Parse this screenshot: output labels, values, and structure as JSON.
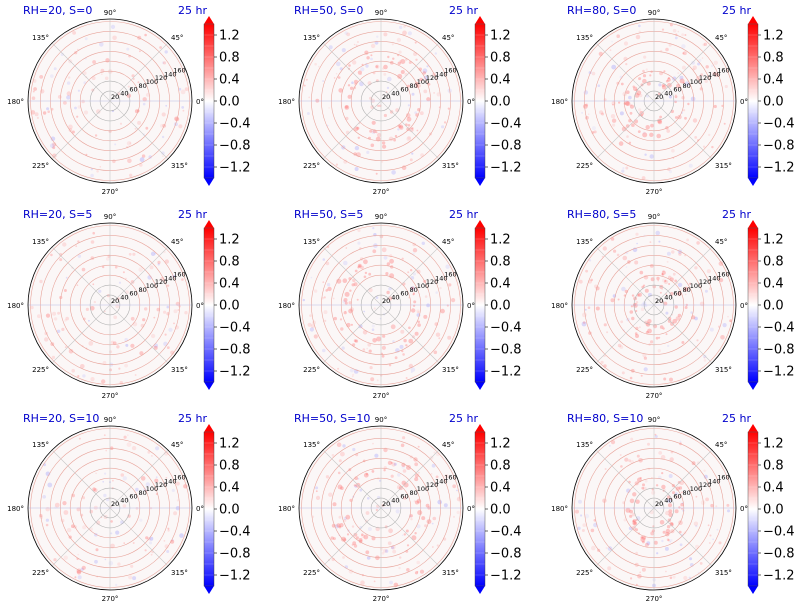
{
  "figure": {
    "time_label": "25 hr",
    "angle_labels": [
      "0°",
      "45°",
      "90°",
      "135°",
      "180°",
      "225°",
      "270°",
      "315°"
    ],
    "radial_labels": [
      "20",
      "40",
      "60",
      "80",
      "100",
      "120",
      "140",
      "160"
    ],
    "colorbar_ticks": [
      "1.2",
      "0.8",
      "0.4",
      "0.0",
      "−0.4",
      "−0.8",
      "−1.2"
    ],
    "colors": {
      "positive": "#ff0000",
      "neutral": "#ffffff",
      "negative": "#0000ff",
      "title": "#0000cc"
    }
  },
  "chart_data": [
    {
      "type": "heatmap",
      "projection": "polar",
      "title": "RH=20, S=0",
      "rh": 20,
      "s": 0,
      "r_ticks": [
        20,
        40,
        60,
        80,
        100,
        120,
        140,
        160
      ],
      "theta_ticks": [
        0,
        45,
        90,
        135,
        180,
        225,
        270,
        315
      ],
      "colorbar": {
        "ticks": [
          -1.2,
          -0.8,
          -0.4,
          0.0,
          0.4,
          0.8,
          1.2
        ],
        "colormap": "bwr",
        "extend": "both",
        "range": [
          -1.4,
          1.4
        ]
      }
    },
    {
      "type": "heatmap",
      "projection": "polar",
      "title": "RH=50, S=0",
      "rh": 50,
      "s": 0,
      "r_ticks": [
        20,
        40,
        60,
        80,
        100,
        120,
        140,
        160
      ],
      "theta_ticks": [
        0,
        45,
        90,
        135,
        180,
        225,
        270,
        315
      ],
      "colorbar": {
        "ticks": [
          -1.2,
          -0.8,
          -0.4,
          0.0,
          0.4,
          0.8,
          1.2
        ],
        "colormap": "bwr",
        "extend": "both",
        "range": [
          -1.4,
          1.4
        ]
      }
    },
    {
      "type": "heatmap",
      "projection": "polar",
      "title": "RH=80, S=0",
      "rh": 80,
      "s": 0,
      "r_ticks": [
        20,
        40,
        60,
        80,
        100,
        120,
        140,
        160
      ],
      "theta_ticks": [
        0,
        45,
        90,
        135,
        180,
        225,
        270,
        315
      ],
      "colorbar": {
        "ticks": [
          -1.2,
          -0.8,
          -0.4,
          0.0,
          0.4,
          0.8,
          1.2
        ],
        "colormap": "bwr",
        "extend": "both",
        "range": [
          -1.4,
          1.4
        ]
      }
    },
    {
      "type": "heatmap",
      "projection": "polar",
      "title": "RH=20, S=5",
      "rh": 20,
      "s": 5,
      "r_ticks": [
        20,
        40,
        60,
        80,
        100,
        120,
        140,
        160
      ],
      "theta_ticks": [
        0,
        45,
        90,
        135,
        180,
        225,
        270,
        315
      ],
      "colorbar": {
        "ticks": [
          -1.2,
          -0.8,
          -0.4,
          0.0,
          0.4,
          0.8,
          1.2
        ],
        "colormap": "bwr",
        "extend": "both",
        "range": [
          -1.4,
          1.4
        ]
      }
    },
    {
      "type": "heatmap",
      "projection": "polar",
      "title": "RH=50, S=5",
      "rh": 50,
      "s": 5,
      "r_ticks": [
        20,
        40,
        60,
        80,
        100,
        120,
        140,
        160
      ],
      "theta_ticks": [
        0,
        45,
        90,
        135,
        180,
        225,
        270,
        315
      ],
      "colorbar": {
        "ticks": [
          -1.2,
          -0.8,
          -0.4,
          0.0,
          0.4,
          0.8,
          1.2
        ],
        "colormap": "bwr",
        "extend": "both",
        "range": [
          -1.4,
          1.4
        ]
      }
    },
    {
      "type": "heatmap",
      "projection": "polar",
      "title": "RH=80, S=5",
      "rh": 80,
      "s": 5,
      "r_ticks": [
        20,
        40,
        60,
        80,
        100,
        120,
        140,
        160
      ],
      "theta_ticks": [
        0,
        45,
        90,
        135,
        180,
        225,
        270,
        315
      ],
      "colorbar": {
        "ticks": [
          -1.2,
          -0.8,
          -0.4,
          0.0,
          0.4,
          0.8,
          1.2
        ],
        "colormap": "bwr",
        "extend": "both",
        "range": [
          -1.4,
          1.4
        ]
      }
    },
    {
      "type": "heatmap",
      "projection": "polar",
      "title": "RH=20, S=10",
      "rh": 20,
      "s": 10,
      "r_ticks": [
        20,
        40,
        60,
        80,
        100,
        120,
        140,
        160
      ],
      "theta_ticks": [
        0,
        45,
        90,
        135,
        180,
        225,
        270,
        315
      ],
      "colorbar": {
        "ticks": [
          -1.2,
          -0.8,
          -0.4,
          0.0,
          0.4,
          0.8,
          1.2
        ],
        "colormap": "bwr",
        "extend": "both",
        "range": [
          -1.4,
          1.4
        ]
      }
    },
    {
      "type": "heatmap",
      "projection": "polar",
      "title": "RH=50, S=10",
      "rh": 50,
      "s": 10,
      "r_ticks": [
        20,
        40,
        60,
        80,
        100,
        120,
        140,
        160
      ],
      "theta_ticks": [
        0,
        45,
        90,
        135,
        180,
        225,
        270,
        315
      ],
      "colorbar": {
        "ticks": [
          -1.2,
          -0.8,
          -0.4,
          0.0,
          0.4,
          0.8,
          1.2
        ],
        "colormap": "bwr",
        "extend": "both",
        "range": [
          -1.4,
          1.4
        ]
      }
    },
    {
      "type": "heatmap",
      "projection": "polar",
      "title": "RH=80, S=10",
      "rh": 80,
      "s": 10,
      "r_ticks": [
        20,
        40,
        60,
        80,
        100,
        120,
        140,
        160
      ],
      "theta_ticks": [
        0,
        45,
        90,
        135,
        180,
        225,
        270,
        315
      ],
      "colorbar": {
        "ticks": [
          -1.2,
          -0.8,
          -0.4,
          0.0,
          0.4,
          0.8,
          1.2
        ],
        "colormap": "bwr",
        "extend": "both",
        "range": [
          -1.4,
          1.4
        ]
      }
    }
  ]
}
